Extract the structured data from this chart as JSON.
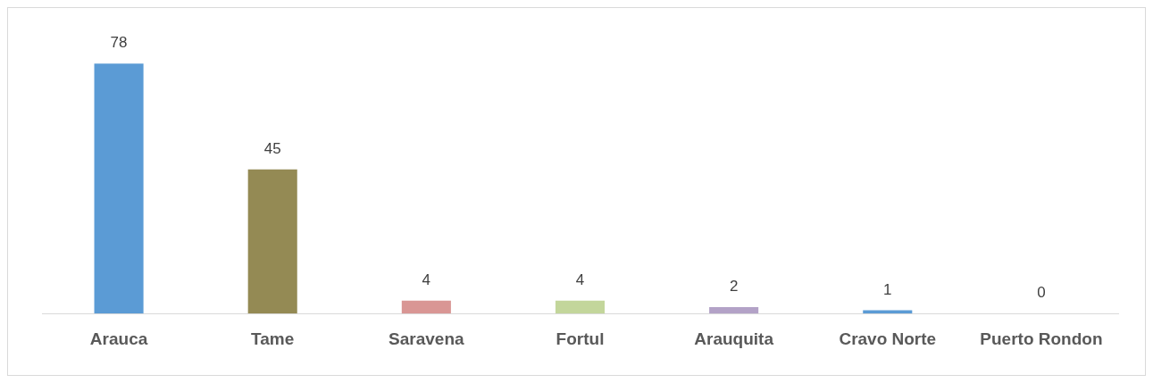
{
  "chart_data": {
    "type": "bar",
    "categories": [
      "Arauca",
      "Tame",
      "Saravena",
      "Fortul",
      "Arauquita",
      "Cravo Norte",
      "Puerto Rondon"
    ],
    "values": [
      78,
      45,
      4,
      4,
      2,
      1,
      0
    ],
    "colors": [
      "#5b9bd5",
      "#948a54",
      "#d99694",
      "#c3d69b",
      "#b3a2c7",
      "#5b9bd5",
      "#5b9bd5"
    ],
    "data_labels": true,
    "grid": false,
    "legend": false
  }
}
